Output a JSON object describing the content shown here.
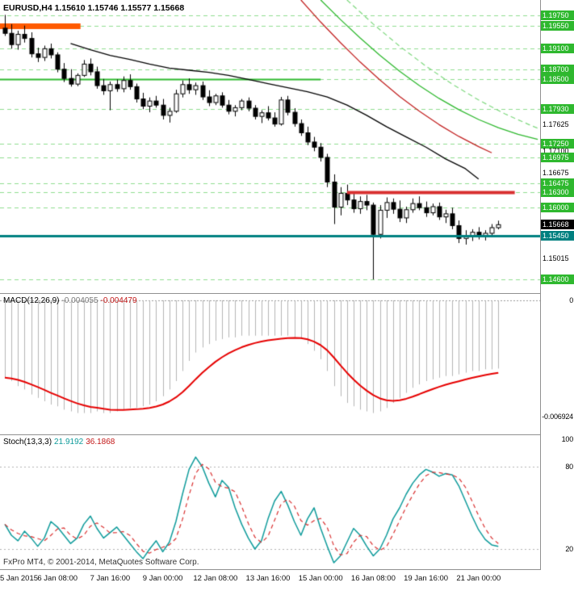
{
  "footer": {
    "copyright": "FxPro MT4, © 2001-2014, MetaQuotes Software Corp."
  },
  "colors": {
    "bull": "#ffffff",
    "bear": "#000000",
    "wick": "#000000",
    "grid_green": "#8fdc8f",
    "level_green": "#2eb82e",
    "orange": "#ff5a00",
    "red_line": "#d83030",
    "teal": "#008080",
    "macd_hist": "#b4b4b4",
    "macd_signal": "#e60000",
    "stoch_k": "#0f9b9b",
    "stoch_d": "#d93030",
    "indicator_level": "#b0b0b0",
    "zero_line": "#999999",
    "badge_green": "#2eb82e",
    "badge_teal": "#008080",
    "badge_black": "#000000"
  },
  "chart_data": [
    {
      "type": "candlestick",
      "symbol": "EURUSD",
      "timeframe": "H4",
      "title": "EURUSD,H4 1.15610 1.15746 1.15577 1.15668",
      "current_bar": {
        "open": 1.1561,
        "high": 1.15746,
        "low": 1.15577,
        "close": 1.15668
      },
      "ylim": [
        1.1435,
        1.2005
      ],
      "x_tick_bars": [
        0,
        8,
        16,
        24,
        32,
        40,
        48,
        56,
        64,
        72
      ],
      "x_tick_labels": [
        "5 Jan 2015",
        "6 Jan 08:00",
        "7 Jan 16:00",
        "9 Jan 00:00",
        "12 Jan 08:00",
        "13 Jan 16:00",
        "15 Jan 00:00",
        "16 Jan 08:00",
        "19 Jan 16:00",
        "21 Jan 00:00"
      ],
      "ohlc": [
        [
          1.195,
          1.1976,
          1.1935,
          1.194
        ],
        [
          1.194,
          1.1958,
          1.191,
          1.1918
        ],
        [
          1.1918,
          1.1945,
          1.1908,
          1.1938
        ],
        [
          1.1938,
          1.1955,
          1.1922,
          1.193
        ],
        [
          1.193,
          1.1942,
          1.1893,
          1.19
        ],
        [
          1.19,
          1.1912,
          1.1884,
          1.1893
        ],
        [
          1.1893,
          1.1916,
          1.1886,
          1.191
        ],
        [
          1.191,
          1.192,
          1.1891,
          1.1898
        ],
        [
          1.1898,
          1.1903,
          1.1864,
          1.187
        ],
        [
          1.187,
          1.1882,
          1.1845,
          1.1852
        ],
        [
          1.1852,
          1.187,
          1.1836,
          1.1841
        ],
        [
          1.1841,
          1.1862,
          1.1837,
          1.1858
        ],
        [
          1.1858,
          1.1888,
          1.1855,
          1.188
        ],
        [
          1.188,
          1.1891,
          1.1858,
          1.1865
        ],
        [
          1.1865,
          1.1875,
          1.1832,
          1.1838
        ],
        [
          1.1838,
          1.1851,
          1.182,
          1.1828
        ],
        [
          1.1828,
          1.1846,
          1.179,
          1.184
        ],
        [
          1.184,
          1.185,
          1.1826,
          1.1832
        ],
        [
          1.1832,
          1.1856,
          1.1825,
          1.1848
        ],
        [
          1.1848,
          1.186,
          1.183,
          1.1836
        ],
        [
          1.1836,
          1.1842,
          1.1805,
          1.1812
        ],
        [
          1.1812,
          1.1824,
          1.1792,
          1.1798
        ],
        [
          1.1798,
          1.1815,
          1.1786,
          1.1808
        ],
        [
          1.1808,
          1.1818,
          1.1795,
          1.18
        ],
        [
          1.18,
          1.1812,
          1.1772,
          1.178
        ],
        [
          1.178,
          1.1795,
          1.1766,
          1.1788
        ],
        [
          1.1788,
          1.183,
          1.1785,
          1.1822
        ],
        [
          1.1822,
          1.1848,
          1.1815,
          1.184
        ],
        [
          1.184,
          1.1852,
          1.1822,
          1.183
        ],
        [
          1.183,
          1.1844,
          1.182,
          1.1838
        ],
        [
          1.1838,
          1.1846,
          1.181,
          1.1816
        ],
        [
          1.1816,
          1.1829,
          1.1798,
          1.1805
        ],
        [
          1.1805,
          1.1822,
          1.18,
          1.1818
        ],
        [
          1.1818,
          1.1825,
          1.1795,
          1.18
        ],
        [
          1.18,
          1.181,
          1.1782,
          1.1788
        ],
        [
          1.1788,
          1.18,
          1.1778,
          1.1795
        ],
        [
          1.1795,
          1.1812,
          1.179,
          1.1808
        ],
        [
          1.1808,
          1.1815,
          1.1788,
          1.1794
        ],
        [
          1.1794,
          1.18,
          1.1772,
          1.1778
        ],
        [
          1.1778,
          1.179,
          1.1765,
          1.1785
        ],
        [
          1.1785,
          1.1798,
          1.177,
          1.1775
        ],
        [
          1.1775,
          1.1786,
          1.1758,
          1.1763
        ],
        [
          1.1763,
          1.1816,
          1.176,
          1.181
        ],
        [
          1.181,
          1.1818,
          1.178,
          1.1786
        ],
        [
          1.1786,
          1.1794,
          1.1758,
          1.1764
        ],
        [
          1.1764,
          1.1772,
          1.174,
          1.1746
        ],
        [
          1.1746,
          1.1758,
          1.1722,
          1.1728
        ],
        [
          1.1728,
          1.1738,
          1.171,
          1.1718
        ],
        [
          1.1718,
          1.1726,
          1.169,
          1.1698
        ],
        [
          1.1698,
          1.1705,
          1.164,
          1.165
        ],
        [
          1.165,
          1.1665,
          1.1568,
          1.1601
        ],
        [
          1.1601,
          1.164,
          1.1585,
          1.1628
        ],
        [
          1.1628,
          1.1645,
          1.1605,
          1.1615
        ],
        [
          1.1615,
          1.163,
          1.159,
          1.1598
        ],
        [
          1.1598,
          1.1622,
          1.1588,
          1.1612
        ],
        [
          1.1612,
          1.1625,
          1.1595,
          1.1605
        ],
        [
          1.1605,
          1.161,
          1.146,
          1.1548
        ],
        [
          1.1548,
          1.1605,
          1.154,
          1.1595
        ],
        [
          1.1595,
          1.162,
          1.158,
          1.161
        ],
        [
          1.161,
          1.1618,
          1.1588,
          1.1597
        ],
        [
          1.1597,
          1.1614,
          1.1572,
          1.158
        ],
        [
          1.158,
          1.1602,
          1.157,
          1.1596
        ],
        [
          1.1596,
          1.1618,
          1.159,
          1.1608
        ],
        [
          1.1608,
          1.1622,
          1.1595,
          1.16
        ],
        [
          1.16,
          1.1612,
          1.1582,
          1.159
        ],
        [
          1.159,
          1.1608,
          1.1585,
          1.1602
        ],
        [
          1.1602,
          1.161,
          1.1576,
          1.1582
        ],
        [
          1.1582,
          1.1596,
          1.157,
          1.1588
        ],
        [
          1.1588,
          1.16,
          1.1558,
          1.1565
        ],
        [
          1.1565,
          1.1575,
          1.1531,
          1.154
        ],
        [
          1.154,
          1.1556,
          1.1528,
          1.1546
        ],
        [
          1.1546,
          1.1558,
          1.1535,
          1.1552
        ],
        [
          1.1552,
          1.1562,
          1.1538,
          1.1544
        ],
        [
          1.1544,
          1.1556,
          1.1536,
          1.155
        ],
        [
          1.155,
          1.1568,
          1.1542,
          1.1561
        ],
        [
          1.1561,
          1.15746,
          1.15577,
          1.15668
        ]
      ],
      "levels": {
        "green_dashed": [
          1.1975,
          1.1955,
          1.191,
          1.187,
          1.185,
          1.1793,
          1.1725,
          1.16975,
          1.16475,
          1.163,
          1.16,
          1.146
        ],
        "green_solid": {
          "price": 1.185,
          "to_bar": 48,
          "width": 2
        },
        "orange_segment": {
          "price": 1.1955,
          "to_bar": 11.5,
          "width": 7
        },
        "red_resistance": {
          "price": 1.163,
          "from_bar": 52,
          "to_bar": 77.5,
          "width": 4
        },
        "teal_support": {
          "price": 1.1545,
          "width": 3
        }
      },
      "overlays": [
        {
          "name": "ma-black",
          "color": "#000000",
          "width": 1.3,
          "points": [
            [
              10,
              1.192
            ],
            [
              13,
              1.1908
            ],
            [
              16,
              1.1897
            ],
            [
              19,
              1.1889
            ],
            [
              22,
              1.188
            ],
            [
              25,
              1.1872
            ],
            [
              28,
              1.1868
            ],
            [
              31,
              1.1864
            ],
            [
              34,
              1.1858
            ],
            [
              37,
              1.185
            ],
            [
              40,
              1.1842
            ],
            [
              43,
              1.1834
            ],
            [
              46,
              1.1826
            ],
            [
              49,
              1.1816
            ],
            [
              52,
              1.18
            ],
            [
              55,
              1.178
            ],
            [
              58,
              1.1758
            ],
            [
              61,
              1.1738
            ],
            [
              64,
              1.1718
            ],
            [
              67,
              1.1695
            ],
            [
              70,
              1.1676
            ],
            [
              72,
              1.1656
            ]
          ]
        },
        {
          "name": "trend-red",
          "color": "#c22222",
          "width": 1.3,
          "points": [
            [
              45,
              1.2005
            ],
            [
              48,
              1.1962
            ],
            [
              51,
              1.1922
            ],
            [
              54,
              1.1884
            ],
            [
              57,
              1.1849
            ],
            [
              60,
              1.1817
            ],
            [
              63,
              1.1788
            ],
            [
              66,
              1.1762
            ],
            [
              69,
              1.1739
            ],
            [
              72,
              1.1719
            ],
            [
              74,
              1.1707
            ]
          ]
        },
        {
          "name": "trend-green",
          "color": "#2eb82e",
          "width": 1.3,
          "points": [
            [
              48,
              1.2005
            ],
            [
              51,
              1.1967
            ],
            [
              54,
              1.1931
            ],
            [
              57,
              1.1897
            ],
            [
              60,
              1.1866
            ],
            [
              63,
              1.1838
            ],
            [
              66,
              1.1813
            ],
            [
              69,
              1.1791
            ],
            [
              72,
              1.1772
            ],
            [
              75,
              1.1756
            ],
            [
              78,
              1.1743
            ],
            [
              81,
              1.1733
            ]
          ]
        },
        {
          "name": "trend-green-dashed",
          "color": "#7fd87f",
          "width": 1.2,
          "dash": [
            6,
            4
          ],
          "points": [
            [
              52,
              1.2005
            ],
            [
              56,
              1.1958
            ],
            [
              60,
              1.1915
            ],
            [
              64,
              1.1876
            ],
            [
              68,
              1.1841
            ],
            [
              72,
              1.181
            ],
            [
              76,
              1.1783
            ],
            [
              80,
              1.176
            ],
            [
              82,
              1.175
            ]
          ]
        }
      ],
      "y_axis_labels": [
        {
          "text": "1.19750",
          "price": 1.1975,
          "style": "green"
        },
        {
          "text": "1.19550",
          "price": 1.1955,
          "style": "green"
        },
        {
          "text": "1.19100",
          "price": 1.191,
          "style": "green"
        },
        {
          "text": "1.18700",
          "price": 1.187,
          "style": "green"
        },
        {
          "text": "1.18500",
          "price": 1.185,
          "style": "green"
        },
        {
          "text": "1.17930",
          "price": 1.1793,
          "style": "green"
        },
        {
          "text": "1.17625",
          "price": 1.17625,
          "style": "plain"
        },
        {
          "text": "1.17250",
          "price": 1.1725,
          "style": "green"
        },
        {
          "text": "1.17100",
          "price": 1.171,
          "style": "plain"
        },
        {
          "text": "1.16975",
          "price": 1.16975,
          "style": "green"
        },
        {
          "text": "1.16675",
          "price": 1.16675,
          "style": "plain"
        },
        {
          "text": "1.16475",
          "price": 1.16475,
          "style": "green"
        },
        {
          "text": "1.16300",
          "price": 1.163,
          "style": "green"
        },
        {
          "text": "1.16000",
          "price": 1.16,
          "style": "green"
        },
        {
          "text": "1.15668",
          "price": 1.15668,
          "style": "current"
        },
        {
          "text": "1.15450",
          "price": 1.1545,
          "style": "teal"
        },
        {
          "text": "1.15015",
          "price": 1.15015,
          "style": "plain"
        },
        {
          "text": "1.14600",
          "price": 1.146,
          "style": "green"
        }
      ]
    },
    {
      "type": "macd-histogram",
      "label": "MACD(12,26,9)",
      "values_text": [
        "-0.004055",
        "-0.004479"
      ],
      "ylim": [
        -0.0072,
        0
      ],
      "signal_period": 9,
      "y_axis_labels": [
        {
          "text": "0",
          "value": 0
        },
        {
          "text": "-0.006924",
          "value": -0.006924
        }
      ],
      "macd": [
        -0.0046,
        -0.0048,
        -0.0051,
        -0.0053,
        -0.0056,
        -0.0058,
        -0.006,
        -0.0062,
        -0.0063,
        -0.0065,
        -0.0066,
        -0.0067,
        -0.0067,
        -0.0067,
        -0.0066,
        -0.0067,
        -0.0067,
        -0.0066,
        -0.0065,
        -0.0064,
        -0.0064,
        -0.0063,
        -0.0062,
        -0.006,
        -0.0057,
        -0.0053,
        -0.0048,
        -0.0042,
        -0.0036,
        -0.0031,
        -0.0028,
        -0.0026,
        -0.0024,
        -0.0023,
        -0.0022,
        -0.0022,
        -0.0021,
        -0.0021,
        -0.0021,
        -0.0021,
        -0.0021,
        -0.0021,
        -0.0021,
        -0.0021,
        -0.0022,
        -0.0023,
        -0.0026,
        -0.003,
        -0.0035,
        -0.0042,
        -0.0051,
        -0.0057,
        -0.0061,
        -0.0063,
        -0.0065,
        -0.0066,
        -0.0067,
        -0.0066,
        -0.0064,
        -0.0061,
        -0.0058,
        -0.0055,
        -0.0052,
        -0.005,
        -0.0048,
        -0.0047,
        -0.0046,
        -0.0045,
        -0.0045,
        -0.0044,
        -0.0043,
        -0.0042,
        -0.0042,
        -0.0041,
        -0.0041,
        -0.004055
      ]
    },
    {
      "type": "stochastic",
      "label": "Stoch(13,3,3)",
      "values_text": [
        "21.9192",
        "36.1868"
      ],
      "levels": [
        80,
        20
      ],
      "d_period": 3,
      "y_axis_labels": [
        {
          "text": "100",
          "value": 100
        },
        {
          "text": "80",
          "value": 80
        },
        {
          "text": "20",
          "value": 20
        }
      ],
      "k": [
        38,
        30,
        26,
        33,
        28,
        22,
        28,
        40,
        36,
        30,
        24,
        28,
        38,
        44,
        35,
        28,
        32,
        36,
        30,
        24,
        18,
        13,
        20,
        26,
        18,
        25,
        40,
        60,
        78,
        87,
        80,
        68,
        58,
        70,
        65,
        50,
        38,
        28,
        20,
        26,
        42,
        55,
        62,
        52,
        40,
        30,
        42,
        50,
        35,
        22,
        10,
        15,
        25,
        35,
        30,
        22,
        15,
        20,
        30,
        42,
        50,
        60,
        68,
        74,
        78,
        76,
        73,
        75,
        74,
        66,
        55,
        44,
        34,
        27,
        23,
        21.92
      ]
    }
  ]
}
